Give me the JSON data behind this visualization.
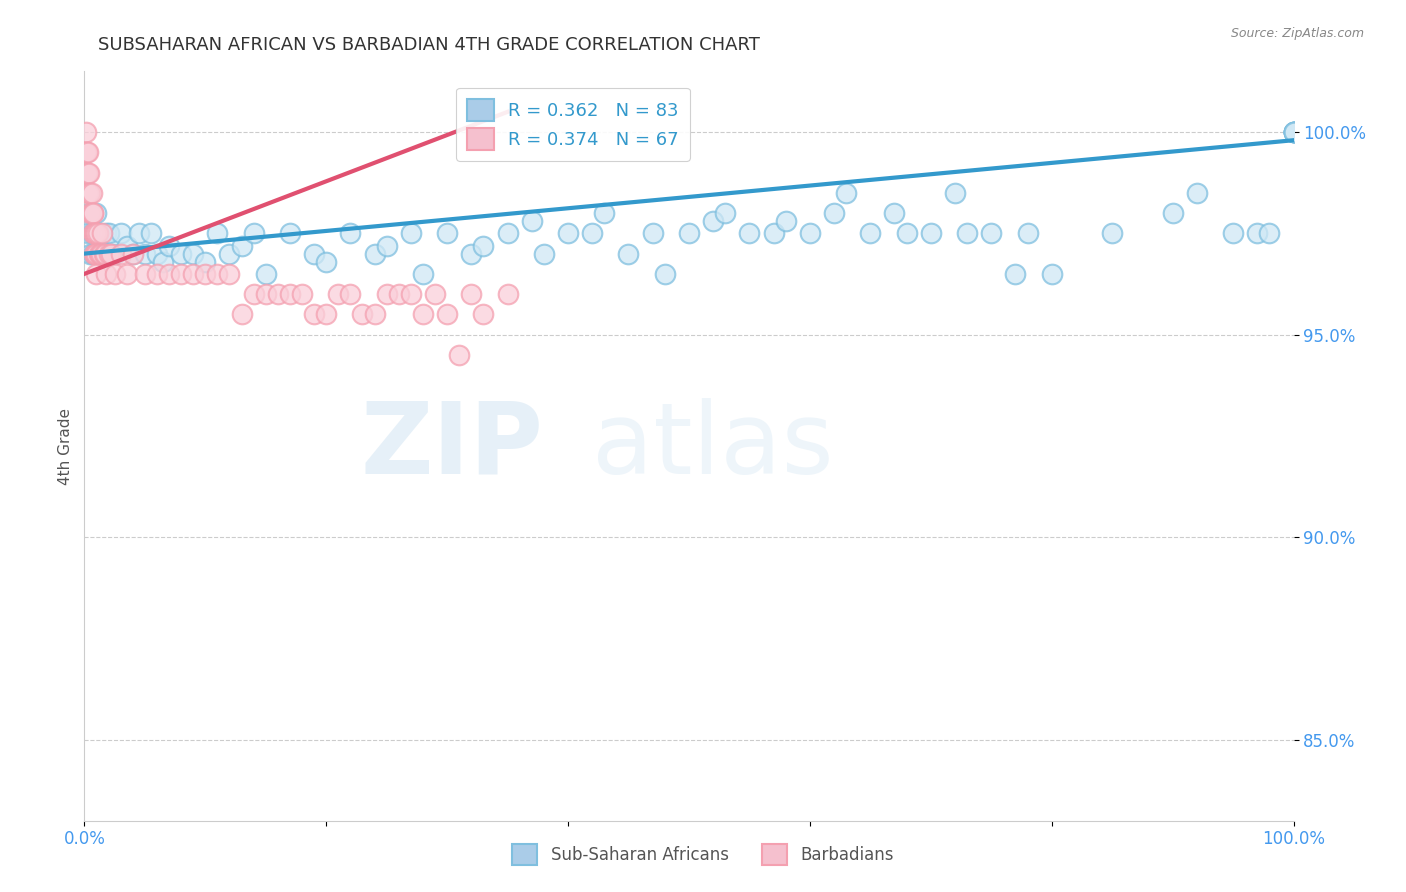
{
  "title": "SUBSAHARAN AFRICAN VS BARBADIAN 4TH GRADE CORRELATION CHART",
  "source": "Source: ZipAtlas.com",
  "xlabel": "",
  "ylabel": "4th Grade",
  "legend_labels": [
    "Sub-Saharan Africans",
    "Barbadians"
  ],
  "blue_color": "#7fbfdf",
  "pink_color": "#f4a0b0",
  "blue_line_color": "#3399cc",
  "pink_line_color": "#e05070",
  "R_blue": 0.362,
  "N_blue": 83,
  "R_pink": 0.374,
  "N_pink": 67,
  "blue_points_x": [
    0.3,
    0.5,
    0.5,
    0.6,
    0.7,
    0.8,
    0.9,
    1.0,
    1.0,
    1.2,
    1.5,
    1.8,
    2.0,
    2.5,
    3.0,
    3.5,
    4.0,
    4.5,
    5.0,
    5.5,
    6.0,
    6.5,
    7.0,
    8.0,
    9.0,
    10.0,
    11.0,
    12.0,
    13.0,
    14.0,
    15.0,
    17.0,
    19.0,
    20.0,
    22.0,
    24.0,
    25.0,
    27.0,
    28.0,
    30.0,
    32.0,
    33.0,
    35.0,
    37.0,
    38.0,
    40.0,
    42.0,
    43.0,
    45.0,
    47.0,
    48.0,
    50.0,
    52.0,
    53.0,
    55.0,
    57.0,
    58.0,
    60.0,
    62.0,
    63.0,
    65.0,
    67.0,
    68.0,
    70.0,
    72.0,
    73.0,
    75.0,
    77.0,
    78.0,
    80.0,
    85.0,
    90.0,
    92.0,
    95.0,
    97.0,
    98.0,
    100.0,
    100.0,
    100.0,
    100.0,
    100.0,
    100.0,
    100.0
  ],
  "blue_points_y": [
    97.5,
    97.0,
    98.0,
    97.5,
    97.0,
    97.5,
    97.0,
    97.5,
    98.0,
    97.5,
    97.0,
    97.5,
    97.5,
    97.0,
    97.5,
    97.2,
    97.0,
    97.5,
    97.0,
    97.5,
    97.0,
    96.8,
    97.2,
    97.0,
    97.0,
    96.8,
    97.5,
    97.0,
    97.2,
    97.5,
    96.5,
    97.5,
    97.0,
    96.8,
    97.5,
    97.0,
    97.2,
    97.5,
    96.5,
    97.5,
    97.0,
    97.2,
    97.5,
    97.8,
    97.0,
    97.5,
    97.5,
    98.0,
    97.0,
    97.5,
    96.5,
    97.5,
    97.8,
    98.0,
    97.5,
    97.5,
    97.8,
    97.5,
    98.0,
    98.5,
    97.5,
    98.0,
    97.5,
    97.5,
    98.5,
    97.5,
    97.5,
    96.5,
    97.5,
    96.5,
    97.5,
    98.0,
    98.5,
    97.5,
    97.5,
    97.5,
    100.0,
    100.0,
    100.0,
    100.0,
    100.0,
    100.0,
    100.0
  ],
  "pink_points_x": [
    0.1,
    0.1,
    0.2,
    0.2,
    0.3,
    0.3,
    0.3,
    0.4,
    0.4,
    0.5,
    0.5,
    0.6,
    0.6,
    0.7,
    0.7,
    0.7,
    0.8,
    0.8,
    0.9,
    0.9,
    1.0,
    1.0,
    1.0,
    1.1,
    1.2,
    1.3,
    1.4,
    1.5,
    1.6,
    1.7,
    1.8,
    2.0,
    2.2,
    2.5,
    3.0,
    3.5,
    4.0,
    5.0,
    6.0,
    7.0,
    8.0,
    9.0,
    10.0,
    11.0,
    12.0,
    13.0,
    14.0,
    15.0,
    16.0,
    17.0,
    18.0,
    19.0,
    20.0,
    21.0,
    22.0,
    23.0,
    24.0,
    25.0,
    26.0,
    27.0,
    28.0,
    29.0,
    30.0,
    31.0,
    32.0,
    33.0,
    35.0
  ],
  "pink_points_y": [
    100.0,
    99.5,
    99.5,
    99.0,
    99.5,
    99.0,
    98.5,
    99.0,
    98.5,
    98.5,
    98.0,
    98.5,
    98.0,
    98.0,
    98.0,
    97.5,
    97.5,
    97.0,
    97.5,
    97.0,
    97.5,
    97.0,
    96.5,
    97.5,
    97.0,
    97.0,
    97.0,
    97.5,
    97.0,
    97.0,
    96.5,
    97.0,
    97.0,
    96.5,
    97.0,
    96.5,
    97.0,
    96.5,
    96.5,
    96.5,
    96.5,
    96.5,
    96.5,
    96.5,
    96.5,
    95.5,
    96.0,
    96.0,
    96.0,
    96.0,
    96.0,
    95.5,
    95.5,
    96.0,
    96.0,
    95.5,
    95.5,
    96.0,
    96.0,
    96.0,
    95.5,
    96.0,
    95.5,
    94.5,
    96.0,
    95.5,
    96.0
  ],
  "blue_trend_x": [
    0,
    100
  ],
  "blue_trend_y": [
    97.0,
    99.8
  ],
  "pink_trend_x": [
    0,
    35
  ],
  "pink_trend_y": [
    96.5,
    100.5
  ],
  "xlim": [
    0,
    100
  ],
  "ylim": [
    83,
    101.5
  ],
  "yticks": [
    85,
    90,
    95,
    100
  ],
  "ytick_labels": [
    "85.0%",
    "90.0%",
    "95.0%",
    "100.0%"
  ],
  "xtick_positions": [
    0,
    20,
    40,
    60,
    80,
    100
  ],
  "xtick_labels": [
    "0.0%",
    "",
    "",
    "",
    "",
    "100.0%"
  ],
  "watermark_zip": "ZIP",
  "watermark_atlas": "atlas",
  "background_color": "#ffffff",
  "grid_color": "#cccccc",
  "bottom_legend_labels": [
    "Sub-Saharan Africans",
    "Barbadians"
  ]
}
